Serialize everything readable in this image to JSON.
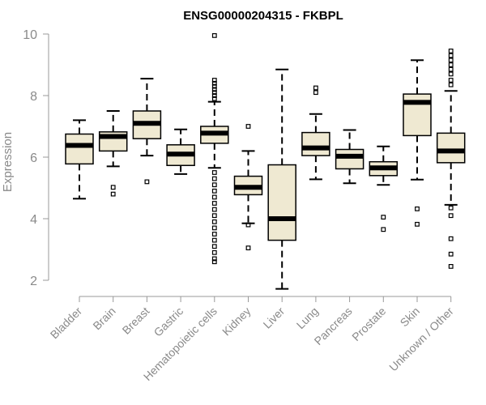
{
  "chart_data": {
    "type": "box",
    "title": "ENSG00000204315 - FKBPL",
    "xlabel": "",
    "ylabel": "Expression",
    "ylim": [
      1.6,
      10.1
    ],
    "yticks": [
      2,
      4,
      6,
      8,
      10
    ],
    "grid": false,
    "legend": "none",
    "box_fill": "#efe9d2",
    "box_stroke": "#000000",
    "median_color": "#000000",
    "categories": [
      "Bladder",
      "Brain",
      "Breast",
      "Gastric",
      "Hematopoietic cells",
      "Kidney",
      "Liver",
      "Lung",
      "Pancreas",
      "Prostate",
      "Skin",
      "Unknown / Other"
    ],
    "boxes": [
      {
        "category": "Bladder",
        "whisker_low": 4.65,
        "q1": 5.78,
        "median": 6.38,
        "q3": 6.75,
        "whisker_high": 7.2,
        "outliers": []
      },
      {
        "category": "Brain",
        "whisker_low": 5.7,
        "q1": 6.2,
        "median": 6.67,
        "q3": 6.82,
        "whisker_high": 7.5,
        "outliers": [
          5.02,
          4.8
        ]
      },
      {
        "category": "Breast",
        "whisker_low": 6.05,
        "q1": 6.6,
        "median": 7.1,
        "q3": 7.5,
        "whisker_high": 8.55,
        "outliers": [
          5.2
        ]
      },
      {
        "category": "Gastric",
        "whisker_low": 5.45,
        "q1": 5.73,
        "median": 6.1,
        "q3": 6.4,
        "whisker_high": 6.9,
        "outliers": []
      },
      {
        "category": "Hematopoietic cells",
        "whisker_low": 5.65,
        "q1": 6.45,
        "median": 6.78,
        "q3": 7.0,
        "whisker_high": 7.8,
        "outliers": [
          9.95,
          8.5,
          8.4,
          8.3,
          8.2,
          8.1,
          8.0,
          7.9,
          5.5,
          5.3,
          5.1,
          4.9,
          4.7,
          4.5,
          4.3,
          4.1,
          3.9,
          3.7,
          3.5,
          3.3,
          3.1,
          2.9,
          2.7,
          2.6
        ]
      },
      {
        "category": "Kidney",
        "whisker_low": 3.85,
        "q1": 4.78,
        "median": 5.02,
        "q3": 5.38,
        "whisker_high": 6.2,
        "outliers": [
          7.0,
          3.8,
          3.05
        ]
      },
      {
        "category": "Liver",
        "whisker_low": 1.72,
        "q1": 3.3,
        "median": 4.0,
        "q3": 5.75,
        "whisker_high": 8.85,
        "outliers": []
      },
      {
        "category": "Lung",
        "whisker_low": 5.28,
        "q1": 6.05,
        "median": 6.3,
        "q3": 6.8,
        "whisker_high": 7.4,
        "outliers": [
          8.25,
          8.1
        ]
      },
      {
        "category": "Pancreas",
        "whisker_low": 5.15,
        "q1": 5.62,
        "median": 6.03,
        "q3": 6.25,
        "whisker_high": 6.88,
        "outliers": []
      },
      {
        "category": "Prostate",
        "whisker_low": 5.1,
        "q1": 5.4,
        "median": 5.65,
        "q3": 5.85,
        "whisker_high": 6.35,
        "outliers": [
          4.05,
          3.65
        ]
      },
      {
        "category": "Skin",
        "whisker_low": 5.27,
        "q1": 6.7,
        "median": 7.78,
        "q3": 8.05,
        "whisker_high": 9.15,
        "outliers": [
          4.32,
          3.82
        ]
      },
      {
        "category": "Unknown / Other",
        "whisker_low": 4.45,
        "q1": 5.82,
        "median": 6.2,
        "q3": 6.78,
        "whisker_high": 8.15,
        "outliers": [
          9.45,
          9.3,
          9.15,
          9.0,
          8.85,
          8.7,
          8.5,
          8.35,
          4.35,
          4.1,
          3.35,
          2.85,
          2.45
        ]
      }
    ]
  }
}
